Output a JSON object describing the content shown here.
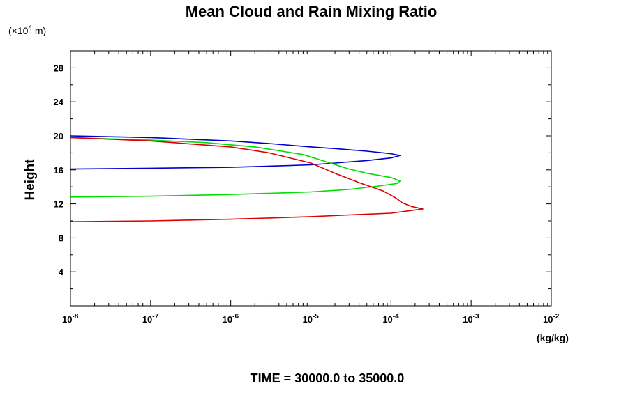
{
  "chart_data": {
    "type": "line",
    "title": "Mean Cloud and Rain Mixing Ratio",
    "ylabel": "Height",
    "y_scale_label": "(×10",
    "y_scale_exp": "4",
    "y_scale_unit": " m)",
    "xlabel": "(kg/kg)",
    "footer": "TIME = 30000.0 to 35000.0",
    "xscale": "log",
    "xlim": [
      1e-08,
      0.01
    ],
    "ylim": [
      0,
      30
    ],
    "x_ticks": [
      {
        "value": 1e-08,
        "base": "10",
        "exp": "-8"
      },
      {
        "value": 1e-07,
        "base": "10",
        "exp": "-7"
      },
      {
        "value": 1e-06,
        "base": "10",
        "exp": "-6"
      },
      {
        "value": 1e-05,
        "base": "10",
        "exp": "-5"
      },
      {
        "value": 0.0001,
        "base": "10",
        "exp": "-4"
      },
      {
        "value": 0.001,
        "base": "10",
        "exp": "-3"
      },
      {
        "value": 0.01,
        "base": "10",
        "exp": "-2"
      }
    ],
    "y_ticks": [
      4,
      8,
      12,
      16,
      20,
      24,
      28
    ],
    "grid": false,
    "colors": {
      "blue": "#0000cc",
      "green": "#00dd00",
      "red": "#dd0000"
    },
    "series": [
      {
        "color": "#0000cc",
        "x": [
          1e-08,
          1e-07,
          1e-06,
          5e-06,
          1e-05,
          2e-05,
          5e-05,
          0.0001,
          0.00013,
          0.0001,
          5e-05,
          2e-05,
          1e-05,
          3e-06,
          1e-06,
          1e-07,
          1e-08
        ],
        "y": [
          16.1,
          16.2,
          16.3,
          16.5,
          16.6,
          16.8,
          17.1,
          17.4,
          17.7,
          17.9,
          18.2,
          18.5,
          18.7,
          19.1,
          19.4,
          19.8,
          20.0
        ]
      },
      {
        "color": "#00dd00",
        "x": [
          1e-08,
          1e-07,
          1e-06,
          5e-06,
          1e-05,
          3e-05,
          7e-05,
          0.00012,
          0.00013,
          0.0001,
          5e-05,
          3e-05,
          1.5e-05,
          8e-06,
          2e-06,
          5e-07,
          1e-07,
          1e-08
        ],
        "y": [
          12.8,
          12.9,
          13.1,
          13.3,
          13.4,
          13.7,
          14.1,
          14.4,
          14.7,
          15.1,
          15.6,
          16.1,
          17.0,
          17.8,
          18.7,
          19.2,
          19.5,
          19.8
        ]
      },
      {
        "color": "#dd0000",
        "x": [
          1e-08,
          1e-07,
          1e-06,
          5e-06,
          1e-05,
          3e-05,
          0.0001,
          0.00025,
          0.00018,
          0.00014,
          0.00011,
          8e-05,
          4e-05,
          2e-05,
          1e-05,
          3e-06,
          1e-06,
          1e-07,
          1e-08
        ],
        "y": [
          9.9,
          10.0,
          10.2,
          10.4,
          10.5,
          10.7,
          10.9,
          11.4,
          11.7,
          12.1,
          12.8,
          13.5,
          14.5,
          15.6,
          16.8,
          18.0,
          18.7,
          19.4,
          19.8
        ]
      }
    ]
  }
}
